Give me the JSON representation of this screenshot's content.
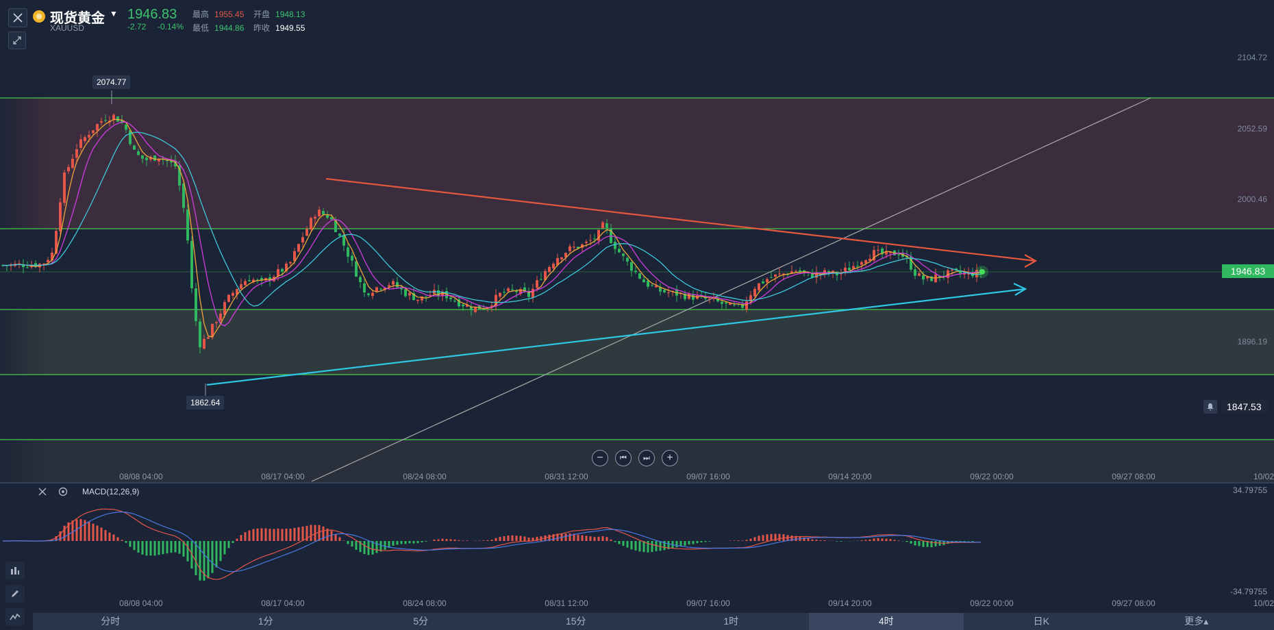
{
  "header": {
    "symbol_name": "现货黄金",
    "symbol_code": "XAUUSD",
    "last_price": "1946.83",
    "change": "-2.72",
    "change_pct": "-0.14%",
    "quotes": {
      "high_label": "最高",
      "high": "1955.45",
      "open_label": "开盘",
      "open": "1948.13",
      "low_label": "最低",
      "low": "1944.86",
      "prev_label": "昨收",
      "prev": "1949.55"
    }
  },
  "price_axis": [
    "2104.72",
    "2052.59",
    "2000.46",
    "1946.83",
    "1896.19",
    "1847.53"
  ],
  "current_price_tag": "1946.83",
  "alert_price": "1847.53",
  "high_marker": "2074.77",
  "low_marker": "1862.64",
  "time_axis": [
    "08/08 04:00",
    "08/17 04:00",
    "08/24 08:00",
    "08/31 12:00",
    "09/07 16:00",
    "09/14 20:00",
    "09/22 00:00",
    "09/27 08:00",
    "10/02"
  ],
  "macd": {
    "label": "MACD(12,26,9)",
    "axis_top": "34.79755",
    "axis_bottom": "-34.79755"
  },
  "timeframe_tabs": [
    "分时",
    "1分",
    "5分",
    "15分",
    "1时",
    "4时",
    "日K",
    "更多▴"
  ],
  "active_tab": "4时",
  "colors": {
    "background": "#1b2436",
    "up": "#e4564a",
    "down": "#2fb85f",
    "resistance_line": "#e5573f",
    "support_line": "#2ec8e6",
    "level_line": "#46c94a",
    "ma_fast": "#f0a43a",
    "ma_mid": "#d23ce0",
    "ma_slow": "#3ec8d8"
  },
  "icons": [
    "close-icon",
    "expand-icon",
    "coin-icon",
    "caret-down-icon",
    "bell-icon",
    "zoom-out-icon",
    "step-back-icon",
    "step-forward-icon",
    "zoom-in-icon",
    "chart-type-icon",
    "pen-icon",
    "indicator-icon",
    "settings-icon"
  ]
}
